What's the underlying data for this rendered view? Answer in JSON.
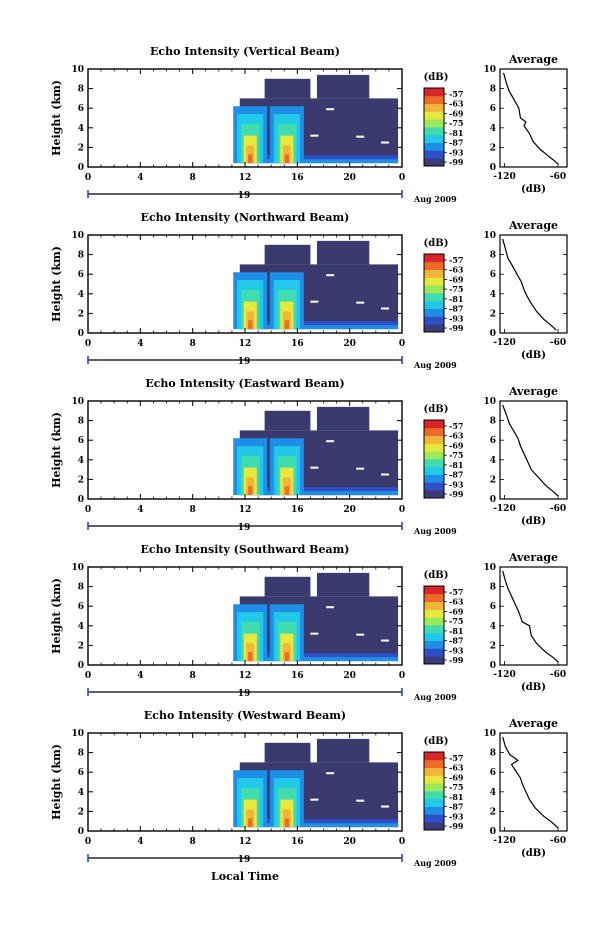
{
  "colors": {
    "background": "#3a3a6e",
    "colorbar": [
      "#3b3b78",
      "#2f4fc8",
      "#1e8ee6",
      "#22c8e8",
      "#3fdcb0",
      "#9be85a",
      "#e6e83c",
      "#f2b53a",
      "#ef6a2a",
      "#d8262a"
    ]
  },
  "shared": {
    "ylabel": "Height (km)",
    "cb_title": "(dB)",
    "cb_ticks": [
      "-57",
      "-63",
      "-69",
      "-75",
      "-81",
      "-87",
      "-93",
      "-99"
    ],
    "avg_title": "Average",
    "avg_xlabel": "(dB)",
    "date_label": "19",
    "month_label": "Aug 2009",
    "xlabel": "Local Time"
  },
  "chart_data": [
    {
      "type": "heatmap",
      "title": "Echo Intensity (Vertical Beam)",
      "x_ticks": [
        "0",
        "4",
        "8",
        "12",
        "16",
        "20",
        "0"
      ],
      "y_ticks": [
        "0",
        "2",
        "4",
        "6",
        "8",
        "10"
      ],
      "xlim": [
        0,
        24
      ],
      "ylim": [
        0,
        10
      ],
      "colorbar": {
        "label": "(dB)",
        "range": [
          -99,
          -57
        ]
      },
      "average_profile": {
        "x_ticks": [
          "-120",
          "-60"
        ],
        "y_ticks": [
          "0",
          "2",
          "4",
          "6",
          "8",
          "10"
        ],
        "xlim": [
          -125,
          -50
        ],
        "ylim": [
          0,
          10
        ],
        "values": [
          [
            -60,
            0.3
          ],
          [
            -65,
            0.7
          ],
          [
            -72,
            1.2
          ],
          [
            -80,
            1.8
          ],
          [
            -88,
            2.6
          ],
          [
            -92,
            3.4
          ],
          [
            -98,
            4.2
          ],
          [
            -96,
            4.6
          ],
          [
            -102,
            5.0
          ],
          [
            -104,
            6.0
          ],
          [
            -110,
            7.0
          ],
          [
            -115,
            7.8
          ],
          [
            -118,
            8.6
          ],
          [
            -121,
            9.6
          ]
        ]
      }
    },
    {
      "type": "heatmap",
      "title": "Echo Intensity (Northward Beam)",
      "x_ticks": [
        "0",
        "4",
        "8",
        "12",
        "16",
        "20",
        "0"
      ],
      "y_ticks": [
        "0",
        "2",
        "4",
        "6",
        "8",
        "10"
      ],
      "xlim": [
        0,
        24
      ],
      "ylim": [
        0,
        10
      ],
      "colorbar": {
        "label": "(dB)",
        "range": [
          -99,
          -57
        ]
      },
      "average_profile": {
        "x_ticks": [
          "-120",
          "-60"
        ],
        "y_ticks": [
          "0",
          "2",
          "4",
          "6",
          "8",
          "10"
        ],
        "xlim": [
          -125,
          -50
        ],
        "ylim": [
          0,
          10
        ],
        "values": [
          [
            -62,
            0.3
          ],
          [
            -68,
            0.8
          ],
          [
            -76,
            1.4
          ],
          [
            -84,
            2.2
          ],
          [
            -90,
            3.0
          ],
          [
            -95,
            3.8
          ],
          [
            -98,
            4.4
          ],
          [
            -101,
            5.2
          ],
          [
            -106,
            6.0
          ],
          [
            -112,
            7.0
          ],
          [
            -116,
            7.6
          ],
          [
            -119,
            8.6
          ],
          [
            -122,
            9.6
          ]
        ]
      }
    },
    {
      "type": "heatmap",
      "title": "Echo Intensity (Eastward Beam)",
      "x_ticks": [
        "0",
        "4",
        "8",
        "12",
        "16",
        "20",
        "0"
      ],
      "y_ticks": [
        "0",
        "2",
        "4",
        "6",
        "8",
        "10"
      ],
      "xlim": [
        0,
        24
      ],
      "ylim": [
        0,
        10
      ],
      "colorbar": {
        "label": "(dB)",
        "range": [
          -99,
          -57
        ]
      },
      "average_profile": {
        "x_ticks": [
          "-120",
          "-60"
        ],
        "y_ticks": [
          "0",
          "2",
          "4",
          "6",
          "8",
          "10"
        ],
        "xlim": [
          -125,
          -50
        ],
        "ylim": [
          0,
          10
        ],
        "values": [
          [
            -60,
            0.3
          ],
          [
            -66,
            0.8
          ],
          [
            -74,
            1.4
          ],
          [
            -82,
            2.2
          ],
          [
            -90,
            3.0
          ],
          [
            -94,
            3.8
          ],
          [
            -98,
            4.6
          ],
          [
            -102,
            5.4
          ],
          [
            -105,
            6.2
          ],
          [
            -110,
            7.0
          ],
          [
            -114,
            7.6
          ],
          [
            -118,
            8.6
          ],
          [
            -122,
            9.6
          ]
        ]
      }
    },
    {
      "type": "heatmap",
      "title": "Echo Intensity (Southward Beam)",
      "x_ticks": [
        "0",
        "4",
        "8",
        "12",
        "16",
        "20",
        "0"
      ],
      "y_ticks": [
        "0",
        "2",
        "4",
        "6",
        "8",
        "10"
      ],
      "xlim": [
        0,
        24
      ],
      "ylim": [
        0,
        10
      ],
      "colorbar": {
        "label": "(dB)",
        "range": [
          -99,
          -57
        ]
      },
      "average_profile": {
        "x_ticks": [
          "-120",
          "-60"
        ],
        "y_ticks": [
          "0",
          "2",
          "4",
          "6",
          "8",
          "10"
        ],
        "xlim": [
          -125,
          -50
        ],
        "ylim": [
          0,
          10
        ],
        "values": [
          [
            -60,
            0.3
          ],
          [
            -66,
            0.8
          ],
          [
            -75,
            1.4
          ],
          [
            -84,
            2.2
          ],
          [
            -90,
            3.0
          ],
          [
            -92,
            4.0
          ],
          [
            -100,
            4.4
          ],
          [
            -104,
            5.4
          ],
          [
            -108,
            6.2
          ],
          [
            -112,
            7.0
          ],
          [
            -116,
            7.8
          ],
          [
            -119,
            8.6
          ],
          [
            -122,
            9.6
          ]
        ]
      }
    },
    {
      "type": "heatmap",
      "title": "Echo Intensity (Westward Beam)",
      "x_ticks": [
        "0",
        "4",
        "8",
        "12",
        "16",
        "20",
        "0"
      ],
      "y_ticks": [
        "0",
        "2",
        "4",
        "6",
        "8",
        "10"
      ],
      "xlim": [
        0,
        24
      ],
      "ylim": [
        0,
        10
      ],
      "colorbar": {
        "label": "(dB)",
        "range": [
          -99,
          -57
        ]
      },
      "average_profile": {
        "x_ticks": [
          "-120",
          "-60"
        ],
        "y_ticks": [
          "0",
          "2",
          "4",
          "6",
          "8",
          "10"
        ],
        "xlim": [
          -125,
          -50
        ],
        "ylim": [
          0,
          10
        ],
        "values": [
          [
            -60,
            0.3
          ],
          [
            -67,
            0.9
          ],
          [
            -76,
            1.5
          ],
          [
            -86,
            2.4
          ],
          [
            -92,
            3.2
          ],
          [
            -96,
            4.0
          ],
          [
            -100,
            4.8
          ],
          [
            -102,
            5.4
          ],
          [
            -108,
            6.2
          ],
          [
            -112,
            6.8
          ],
          [
            -105,
            7.2
          ],
          [
            -114,
            7.8
          ],
          [
            -119,
            8.6
          ],
          [
            -122,
            9.6
          ]
        ]
      }
    }
  ]
}
